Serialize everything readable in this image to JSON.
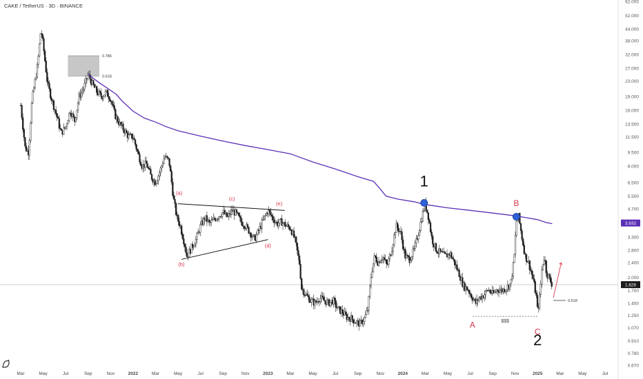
{
  "header": {
    "title": "CAKE / TetherUS · 3D · BINANCE"
  },
  "colors": {
    "candle": "#202020",
    "ma": "#5b2fb5",
    "wave_red": "#d6344a",
    "marker_blue": "#2f62d8",
    "price_tag_bg": "#1b1b1b",
    "ma_tag_bg": "#5b2fb5",
    "fib_box": "#bdbdbd"
  },
  "chart_data": {
    "type": "candlestick",
    "title": "CAKE / TetherUS · 3D · BINANCE",
    "y_scale": "log",
    "ylim": [
      0.67,
      62
    ],
    "y_ticks": [
      {
        "value": 62,
        "label": "62.000"
      },
      {
        "value": 52,
        "label": "52.000"
      },
      {
        "value": 44,
        "label": "44.000"
      },
      {
        "value": 38,
        "label": "38.000"
      },
      {
        "value": 32,
        "label": "32.000"
      },
      {
        "value": 27,
        "label": "27.000"
      },
      {
        "value": 23,
        "label": "23.000"
      },
      {
        "value": 19,
        "label": "19.000"
      },
      {
        "value": 16,
        "label": "16.000"
      },
      {
        "value": 13.5,
        "label": "13.500"
      },
      {
        "value": 11.5,
        "label": "11.500"
      },
      {
        "value": 9.5,
        "label": "9.500"
      },
      {
        "value": 8,
        "label": "8.000"
      },
      {
        "value": 6.5,
        "label": "6.500"
      },
      {
        "value": 5.5,
        "label": "5.500"
      },
      {
        "value": 4.7,
        "label": "4.700"
      },
      {
        "value": 3.3,
        "label": "3.300"
      },
      {
        "value": 2.8,
        "label": "2.800"
      },
      {
        "value": 2.4,
        "label": "2.400"
      },
      {
        "value": 2.0,
        "label": "2.000"
      },
      {
        "value": 1.7,
        "label": "1.700"
      },
      {
        "value": 1.45,
        "label": "1.450"
      },
      {
        "value": 1.25,
        "label": "1.250"
      },
      {
        "value": 1.07,
        "label": "1.070"
      },
      {
        "value": 0.91,
        "label": "0.910"
      },
      {
        "value": 0.78,
        "label": "0.780"
      },
      {
        "value": 0.67,
        "label": "0.670"
      }
    ],
    "x_ticks": [
      {
        "t": 0,
        "label": "Mar",
        "bold": false
      },
      {
        "t": 2,
        "label": "May",
        "bold": false
      },
      {
        "t": 4,
        "label": "Jul",
        "bold": false
      },
      {
        "t": 6,
        "label": "Sep",
        "bold": false
      },
      {
        "t": 8,
        "label": "Nov",
        "bold": false
      },
      {
        "t": 10,
        "label": "2022",
        "bold": true
      },
      {
        "t": 12,
        "label": "Mar",
        "bold": false
      },
      {
        "t": 14,
        "label": "May",
        "bold": false
      },
      {
        "t": 16,
        "label": "Jul",
        "bold": false
      },
      {
        "t": 18,
        "label": "Sep",
        "bold": false
      },
      {
        "t": 20,
        "label": "Nov",
        "bold": false
      },
      {
        "t": 22,
        "label": "2023",
        "bold": true
      },
      {
        "t": 24,
        "label": "Mar",
        "bold": false
      },
      {
        "t": 26,
        "label": "May",
        "bold": false
      },
      {
        "t": 28,
        "label": "Jul",
        "bold": false
      },
      {
        "t": 30,
        "label": "Sep",
        "bold": false
      },
      {
        "t": 32,
        "label": "Nov",
        "bold": false
      },
      {
        "t": 34,
        "label": "2024",
        "bold": true
      },
      {
        "t": 36,
        "label": "Mar",
        "bold": false
      },
      {
        "t": 38,
        "label": "May",
        "bold": false
      },
      {
        "t": 40,
        "label": "Jul",
        "bold": false
      },
      {
        "t": 42,
        "label": "Sep",
        "bold": false
      },
      {
        "t": 44,
        "label": "Nov",
        "bold": false
      },
      {
        "t": 46,
        "label": "2025",
        "bold": true
      },
      {
        "t": 48,
        "label": "Mar",
        "bold": false
      },
      {
        "t": 50,
        "label": "May",
        "bold": false
      },
      {
        "t": 52,
        "label": "Jul",
        "bold": false
      }
    ],
    "price_path": [
      [
        0.0,
        17
      ],
      [
        0.4,
        10
      ],
      [
        0.7,
        9.5
      ],
      [
        1.0,
        18
      ],
      [
        1.5,
        28
      ],
      [
        1.8,
        44
      ],
      [
        2.0,
        36
      ],
      [
        2.4,
        22
      ],
      [
        2.8,
        18
      ],
      [
        3.2,
        15
      ],
      [
        3.6,
        12
      ],
      [
        4.0,
        13
      ],
      [
        4.4,
        16
      ],
      [
        4.8,
        14
      ],
      [
        5.2,
        19
      ],
      [
        5.6,
        21
      ],
      [
        6.0,
        25
      ],
      [
        6.4,
        22
      ],
      [
        6.8,
        20
      ],
      [
        7.2,
        19
      ],
      [
        7.6,
        20
      ],
      [
        8.0,
        18.5
      ],
      [
        8.4,
        15
      ],
      [
        8.8,
        13.5
      ],
      [
        9.2,
        12.5
      ],
      [
        9.6,
        11.5
      ],
      [
        10.0,
        11.5
      ],
      [
        10.4,
        9.5
      ],
      [
        10.8,
        8
      ],
      [
        11.2,
        8.2
      ],
      [
        11.6,
        7
      ],
      [
        12.0,
        6.5
      ],
      [
        12.4,
        7.5
      ],
      [
        12.8,
        9
      ],
      [
        13.2,
        8.5
      ],
      [
        13.4,
        6.8
      ],
      [
        13.6,
        5.3
      ],
      [
        13.9,
        4.2
      ],
      [
        14.2,
        3.8
      ],
      [
        14.6,
        3.0
      ],
      [
        14.8,
        2.6
      ],
      [
        15.2,
        2.9
      ],
      [
        15.6,
        3.2
      ],
      [
        16.0,
        3.8
      ],
      [
        16.4,
        4.2
      ],
      [
        16.8,
        3.9
      ],
      [
        17.2,
        4.1
      ],
      [
        17.6,
        4.3
      ],
      [
        18.0,
        4.5
      ],
      [
        18.4,
        4.2
      ],
      [
        18.8,
        4.6
      ],
      [
        19.2,
        4.4
      ],
      [
        19.6,
        4.0
      ],
      [
        20.0,
        3.8
      ],
      [
        20.4,
        3.5
      ],
      [
        20.8,
        3.2
      ],
      [
        21.2,
        3.6
      ],
      [
        21.6,
        4.1
      ],
      [
        22.0,
        4.6
      ],
      [
        22.4,
        4.2
      ],
      [
        22.8,
        3.9
      ],
      [
        23.2,
        4.0
      ],
      [
        23.6,
        3.8
      ],
      [
        24.0,
        3.7
      ],
      [
        24.4,
        3.2
      ],
      [
        24.8,
        2.4
      ],
      [
        25.0,
        1.75
      ],
      [
        25.4,
        1.6
      ],
      [
        25.8,
        1.5
      ],
      [
        26.2,
        1.45
      ],
      [
        26.6,
        1.55
      ],
      [
        27.0,
        1.5
      ],
      [
        27.4,
        1.45
      ],
      [
        27.8,
        1.5
      ],
      [
        28.2,
        1.35
      ],
      [
        28.6,
        1.3
      ],
      [
        29.0,
        1.22
      ],
      [
        29.4,
        1.2
      ],
      [
        29.8,
        1.15
      ],
      [
        30.2,
        1.12
      ],
      [
        30.6,
        1.2
      ],
      [
        30.9,
        1.35
      ],
      [
        31.2,
        2.1
      ],
      [
        31.5,
        2.6
      ],
      [
        31.8,
        2.4
      ],
      [
        32.2,
        2.6
      ],
      [
        32.6,
        2.3
      ],
      [
        33.0,
        2.8
      ],
      [
        33.4,
        3.8
      ],
      [
        33.8,
        3.5
      ],
      [
        34.2,
        2.6
      ],
      [
        34.6,
        2.5
      ],
      [
        35.0,
        2.8
      ],
      [
        35.4,
        3.5
      ],
      [
        35.8,
        4.5
      ],
      [
        36.0,
        5.0
      ],
      [
        36.3,
        4.2
      ],
      [
        36.6,
        3.2
      ],
      [
        37.0,
        2.8
      ],
      [
        37.4,
        2.7
      ],
      [
        37.8,
        2.6
      ],
      [
        38.2,
        2.7
      ],
      [
        38.6,
        2.4
      ],
      [
        39.0,
        2.1
      ],
      [
        39.4,
        1.8
      ],
      [
        39.8,
        1.72
      ],
      [
        40.2,
        1.55
      ],
      [
        40.5,
        1.45
      ],
      [
        40.8,
        1.55
      ],
      [
        41.2,
        1.6
      ],
      [
        41.6,
        1.72
      ],
      [
        42.0,
        1.62
      ],
      [
        42.4,
        1.72
      ],
      [
        42.8,
        1.7
      ],
      [
        43.2,
        1.75
      ],
      [
        43.6,
        1.85
      ],
      [
        43.9,
        2.5
      ],
      [
        44.1,
        4.0
      ],
      [
        44.3,
        4.3
      ],
      [
        44.6,
        3.3
      ],
      [
        44.9,
        2.6
      ],
      [
        45.2,
        2.4
      ],
      [
        45.6,
        1.95
      ],
      [
        45.9,
        1.55
      ],
      [
        46.0,
        1.3
      ],
      [
        46.2,
        1.6
      ],
      [
        46.4,
        2.3
      ],
      [
        46.6,
        2.6
      ],
      [
        46.8,
        2.1
      ],
      [
        47.0,
        2.0
      ],
      [
        47.3,
        1.82
      ]
    ],
    "moving_average": [
      [
        6.0,
        25
      ],
      [
        7.0,
        22.5
      ],
      [
        8.0,
        20.5
      ],
      [
        8.5,
        19.5
      ],
      [
        9.0,
        18
      ],
      [
        10.0,
        15.8
      ],
      [
        11.0,
        14.5
      ],
      [
        12.0,
        13.8
      ],
      [
        13.0,
        13
      ],
      [
        14.0,
        12.4
      ],
      [
        16.0,
        11.6
      ],
      [
        18.0,
        10.9
      ],
      [
        20.0,
        10.3
      ],
      [
        22.0,
        9.8
      ],
      [
        24.0,
        9.3
      ],
      [
        26.0,
        8.4
      ],
      [
        28.0,
        7.7
      ],
      [
        30.0,
        7.0
      ],
      [
        31.4,
        6.6
      ],
      [
        32.0,
        6.0
      ],
      [
        32.5,
        5.5
      ],
      [
        33.5,
        5.3
      ],
      [
        35.0,
        5.12
      ],
      [
        36.0,
        4.95
      ],
      [
        38.0,
        4.75
      ],
      [
        40.0,
        4.6
      ],
      [
        42.0,
        4.45
      ],
      [
        44.0,
        4.3
      ],
      [
        45.0,
        4.2
      ],
      [
        46.0,
        4.1
      ],
      [
        46.8,
        3.95
      ],
      [
        47.3,
        3.9
      ]
    ],
    "last_price": {
      "value": 1.826,
      "label": "1.826"
    },
    "ma_value": {
      "value": 3.932,
      "label": "3.932"
    },
    "fib_zone": {
      "t1": 4.2,
      "t2": 7.0,
      "high": 31.5,
      "low": 24.5,
      "label_high": "0.786",
      "label_low": "0.618"
    },
    "fib_618_line": {
      "t1": 47.4,
      "t2": 48.5,
      "value": 1.5,
      "label": "0.618"
    },
    "triangle_lines": [
      {
        "t1": 14.0,
        "t2": 23.5,
        "v1": 5.0,
        "v2": 4.6
      },
      {
        "t1": 14.3,
        "t2": 22.0,
        "v1": 2.5,
        "v2": 3.2
      }
    ],
    "triangle_labels": [
      {
        "t": 14.1,
        "v": 5.6,
        "label": "(a)"
      },
      {
        "t": 14.3,
        "v": 2.3,
        "label": "(b)"
      },
      {
        "t": 18.8,
        "v": 5.2,
        "label": "(c)"
      },
      {
        "t": 22.0,
        "v": 2.9,
        "label": "(d)"
      },
      {
        "t": 23.0,
        "v": 4.9,
        "label": "(e)"
      }
    ],
    "wave_labels": [
      {
        "t": 35.9,
        "v": 6.2,
        "label": "1",
        "color": "#111111",
        "size": 22
      },
      {
        "t": 44.1,
        "v": 4.85,
        "label": "B",
        "color": "#d6344a",
        "size": 12
      },
      {
        "t": 40.2,
        "v": 1.07,
        "label": "A",
        "color": "#d6344a",
        "size": 12
      },
      {
        "t": 46.0,
        "v": 0.98,
        "label": "C",
        "color": "#d6344a",
        "size": 12
      },
      {
        "t": 46.0,
        "v": 0.86,
        "label": "2",
        "color": "#111111",
        "size": 22
      }
    ],
    "markers": [
      {
        "t": 35.9,
        "v": 5.05
      },
      {
        "t": 44.1,
        "v": 4.25
      }
    ],
    "sss": {
      "t1": 40.2,
      "t2": 46.0,
      "value": 1.23,
      "label": "$$$"
    },
    "up_arrow": {
      "t1": 47.4,
      "v1": 1.55,
      "t2": 48.1,
      "v2": 2.4
    }
  }
}
